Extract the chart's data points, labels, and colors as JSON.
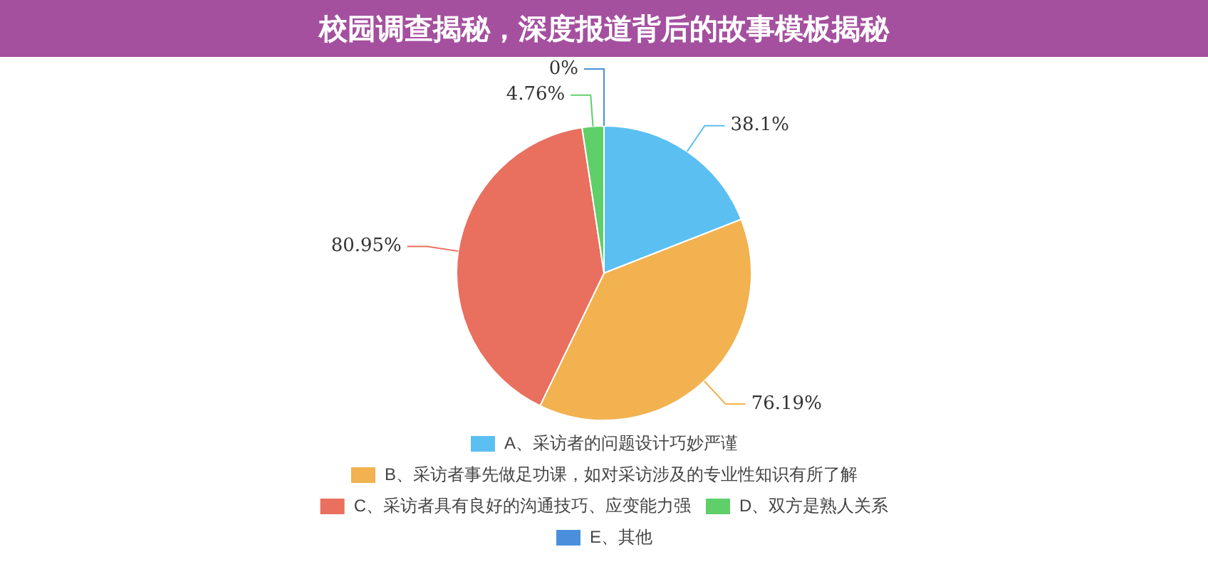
{
  "chart_data": {
    "type": "pie",
    "title": "校园调查揭秘，深度报道背后的故事模板揭秘",
    "categories": [
      "A、采访者的问题设计巧妙严谨",
      "B、采访者事先做足功课，如对采访涉及的专业性知识有所了解",
      "C、采访者具有良好的沟通技巧、应变能力强",
      "D、双方是熟人关系",
      "E、其他"
    ],
    "values": [
      38.1,
      76.19,
      80.95,
      4.76,
      0
    ],
    "value_labels": [
      "38.1%",
      "76.19%",
      "80.95%",
      "4.76%",
      "0%"
    ],
    "colors": [
      "#5bbff2",
      "#f1b24f",
      "#e96f5f",
      "#5fcf6a",
      "#4a8fdc"
    ],
    "legend": "bottom"
  }
}
